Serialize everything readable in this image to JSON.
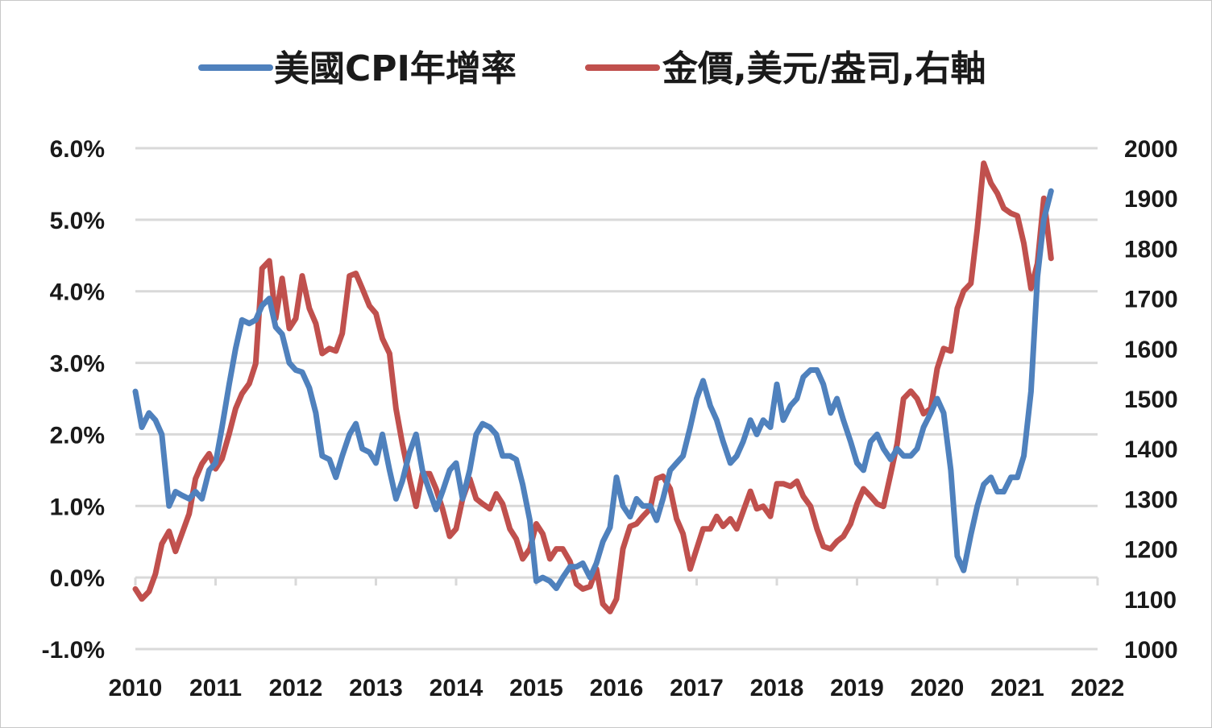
{
  "chart_data": {
    "type": "line",
    "title": "",
    "xlabel": "",
    "ylabel": "",
    "x_ticks": [
      "2010",
      "2011",
      "2012",
      "2013",
      "2014",
      "2015",
      "2016",
      "2017",
      "2018",
      "2019",
      "2020",
      "2021",
      "2022"
    ],
    "xlim": [
      2010,
      2022
    ],
    "y_left": {
      "ticks": [
        "6.0%",
        "5.0%",
        "4.0%",
        "3.0%",
        "2.0%",
        "1.0%",
        "0.0%",
        "-1.0%"
      ],
      "lim": [
        -1.0,
        6.0
      ]
    },
    "y_right": {
      "ticks": [
        "2000",
        "1900",
        "1800",
        "1700",
        "1600",
        "1500",
        "1400",
        "1300",
        "1200",
        "1100",
        "1000"
      ],
      "lim": [
        1000,
        2000
      ]
    },
    "grid": true,
    "legend_position": "top",
    "series": [
      {
        "name": "美國CPI年增率",
        "axis": "left",
        "color": "#4f81bd",
        "points": [
          [
            2010.0,
            2.6
          ],
          [
            2010.08,
            2.1
          ],
          [
            2010.17,
            2.3
          ],
          [
            2010.25,
            2.2
          ],
          [
            2010.33,
            2.0
          ],
          [
            2010.42,
            1.0
          ],
          [
            2010.5,
            1.2
          ],
          [
            2010.58,
            1.15
          ],
          [
            2010.67,
            1.1
          ],
          [
            2010.75,
            1.2
          ],
          [
            2010.83,
            1.1
          ],
          [
            2010.92,
            1.5
          ],
          [
            2011.0,
            1.6
          ],
          [
            2011.08,
            2.1
          ],
          [
            2011.17,
            2.7
          ],
          [
            2011.25,
            3.2
          ],
          [
            2011.33,
            3.6
          ],
          [
            2011.42,
            3.55
          ],
          [
            2011.5,
            3.6
          ],
          [
            2011.58,
            3.8
          ],
          [
            2011.67,
            3.9
          ],
          [
            2011.75,
            3.5
          ],
          [
            2011.83,
            3.4
          ],
          [
            2011.92,
            3.0
          ],
          [
            2012.0,
            2.9
          ],
          [
            2012.08,
            2.87
          ],
          [
            2012.17,
            2.65
          ],
          [
            2012.25,
            2.3
          ],
          [
            2012.33,
            1.7
          ],
          [
            2012.42,
            1.65
          ],
          [
            2012.5,
            1.4
          ],
          [
            2012.58,
            1.7
          ],
          [
            2012.67,
            2.0
          ],
          [
            2012.75,
            2.15
          ],
          [
            2012.83,
            1.8
          ],
          [
            2012.92,
            1.75
          ],
          [
            2013.0,
            1.6
          ],
          [
            2013.08,
            2.0
          ],
          [
            2013.17,
            1.5
          ],
          [
            2013.25,
            1.1
          ],
          [
            2013.33,
            1.35
          ],
          [
            2013.42,
            1.75
          ],
          [
            2013.5,
            2.0
          ],
          [
            2013.58,
            1.5
          ],
          [
            2013.67,
            1.2
          ],
          [
            2013.75,
            0.95
          ],
          [
            2013.83,
            1.2
          ],
          [
            2013.92,
            1.5
          ],
          [
            2014.0,
            1.6
          ],
          [
            2014.08,
            1.1
          ],
          [
            2014.17,
            1.5
          ],
          [
            2014.25,
            2.0
          ],
          [
            2014.33,
            2.15
          ],
          [
            2014.42,
            2.1
          ],
          [
            2014.5,
            2.0
          ],
          [
            2014.58,
            1.7
          ],
          [
            2014.67,
            1.7
          ],
          [
            2014.75,
            1.65
          ],
          [
            2014.83,
            1.3
          ],
          [
            2014.92,
            0.8
          ],
          [
            2015.0,
            -0.05
          ],
          [
            2015.08,
            0.0
          ],
          [
            2015.17,
            -0.05
          ],
          [
            2015.25,
            -0.15
          ],
          [
            2015.33,
            0.0
          ],
          [
            2015.42,
            0.15
          ],
          [
            2015.5,
            0.15
          ],
          [
            2015.58,
            0.2
          ],
          [
            2015.67,
            0.0
          ],
          [
            2015.75,
            0.2
          ],
          [
            2015.83,
            0.5
          ],
          [
            2015.92,
            0.7
          ],
          [
            2016.0,
            1.4
          ],
          [
            2016.08,
            1.0
          ],
          [
            2016.17,
            0.85
          ],
          [
            2016.25,
            1.1
          ],
          [
            2016.33,
            1.0
          ],
          [
            2016.42,
            1.0
          ],
          [
            2016.5,
            0.8
          ],
          [
            2016.58,
            1.1
          ],
          [
            2016.67,
            1.5
          ],
          [
            2016.75,
            1.6
          ],
          [
            2016.83,
            1.7
          ],
          [
            2016.92,
            2.1
          ],
          [
            2017.0,
            2.5
          ],
          [
            2017.08,
            2.75
          ],
          [
            2017.17,
            2.4
          ],
          [
            2017.25,
            2.2
          ],
          [
            2017.33,
            1.9
          ],
          [
            2017.42,
            1.6
          ],
          [
            2017.5,
            1.7
          ],
          [
            2017.58,
            1.9
          ],
          [
            2017.67,
            2.2
          ],
          [
            2017.75,
            2.0
          ],
          [
            2017.83,
            2.2
          ],
          [
            2017.92,
            2.1
          ],
          [
            2018.0,
            2.7
          ],
          [
            2018.08,
            2.2
          ],
          [
            2018.17,
            2.4
          ],
          [
            2018.25,
            2.5
          ],
          [
            2018.33,
            2.8
          ],
          [
            2018.42,
            2.9
          ],
          [
            2018.5,
            2.9
          ],
          [
            2018.58,
            2.7
          ],
          [
            2018.67,
            2.3
          ],
          [
            2018.75,
            2.5
          ],
          [
            2018.83,
            2.2
          ],
          [
            2018.92,
            1.9
          ],
          [
            2019.0,
            1.6
          ],
          [
            2019.08,
            1.5
          ],
          [
            2019.17,
            1.9
          ],
          [
            2019.25,
            2.0
          ],
          [
            2019.33,
            1.8
          ],
          [
            2019.42,
            1.65
          ],
          [
            2019.5,
            1.8
          ],
          [
            2019.58,
            1.7
          ],
          [
            2019.67,
            1.7
          ],
          [
            2019.75,
            1.8
          ],
          [
            2019.83,
            2.1
          ],
          [
            2019.92,
            2.3
          ],
          [
            2020.0,
            2.5
          ],
          [
            2020.08,
            2.3
          ],
          [
            2020.17,
            1.5
          ],
          [
            2020.25,
            0.3
          ],
          [
            2020.33,
            0.1
          ],
          [
            2020.42,
            0.6
          ],
          [
            2020.5,
            1.0
          ],
          [
            2020.58,
            1.3
          ],
          [
            2020.67,
            1.4
          ],
          [
            2020.75,
            1.2
          ],
          [
            2020.83,
            1.2
          ],
          [
            2020.92,
            1.4
          ],
          [
            2021.0,
            1.4
          ],
          [
            2021.08,
            1.7
          ],
          [
            2021.17,
            2.6
          ],
          [
            2021.25,
            4.2
          ],
          [
            2021.33,
            5.0
          ],
          [
            2021.42,
            5.4
          ]
        ]
      },
      {
        "name": "金價,美元/盎司,右軸",
        "axis": "right",
        "color": "#c0504d",
        "points": [
          [
            2010.0,
            1120
          ],
          [
            2010.08,
            1100
          ],
          [
            2010.17,
            1115
          ],
          [
            2010.25,
            1150
          ],
          [
            2010.33,
            1210
          ],
          [
            2010.42,
            1235
          ],
          [
            2010.5,
            1195
          ],
          [
            2010.58,
            1230
          ],
          [
            2010.67,
            1270
          ],
          [
            2010.75,
            1340
          ],
          [
            2010.83,
            1370
          ],
          [
            2010.92,
            1390
          ],
          [
            2011.0,
            1360
          ],
          [
            2011.08,
            1380
          ],
          [
            2011.17,
            1430
          ],
          [
            2011.25,
            1480
          ],
          [
            2011.33,
            1510
          ],
          [
            2011.42,
            1530
          ],
          [
            2011.5,
            1570
          ],
          [
            2011.58,
            1760
          ],
          [
            2011.67,
            1775
          ],
          [
            2011.75,
            1660
          ],
          [
            2011.83,
            1740
          ],
          [
            2011.92,
            1640
          ],
          [
            2012.0,
            1660
          ],
          [
            2012.08,
            1745
          ],
          [
            2012.17,
            1680
          ],
          [
            2012.25,
            1650
          ],
          [
            2012.33,
            1590
          ],
          [
            2012.42,
            1600
          ],
          [
            2012.5,
            1595
          ],
          [
            2012.58,
            1630
          ],
          [
            2012.67,
            1745
          ],
          [
            2012.75,
            1750
          ],
          [
            2012.83,
            1720
          ],
          [
            2012.92,
            1685
          ],
          [
            2013.0,
            1670
          ],
          [
            2013.08,
            1620
          ],
          [
            2013.17,
            1590
          ],
          [
            2013.25,
            1480
          ],
          [
            2013.33,
            1410
          ],
          [
            2013.42,
            1340
          ],
          [
            2013.5,
            1285
          ],
          [
            2013.58,
            1350
          ],
          [
            2013.67,
            1350
          ],
          [
            2013.75,
            1320
          ],
          [
            2013.83,
            1280
          ],
          [
            2013.92,
            1225
          ],
          [
            2014.0,
            1240
          ],
          [
            2014.08,
            1300
          ],
          [
            2014.17,
            1340
          ],
          [
            2014.25,
            1300
          ],
          [
            2014.33,
            1290
          ],
          [
            2014.42,
            1280
          ],
          [
            2014.5,
            1310
          ],
          [
            2014.58,
            1290
          ],
          [
            2014.67,
            1240
          ],
          [
            2014.75,
            1220
          ],
          [
            2014.83,
            1180
          ],
          [
            2014.92,
            1200
          ],
          [
            2015.0,
            1250
          ],
          [
            2015.08,
            1230
          ],
          [
            2015.17,
            1180
          ],
          [
            2015.25,
            1200
          ],
          [
            2015.33,
            1200
          ],
          [
            2015.42,
            1175
          ],
          [
            2015.5,
            1130
          ],
          [
            2015.58,
            1120
          ],
          [
            2015.67,
            1125
          ],
          [
            2015.75,
            1160
          ],
          [
            2015.83,
            1090
          ],
          [
            2015.92,
            1075
          ],
          [
            2016.0,
            1100
          ],
          [
            2016.08,
            1200
          ],
          [
            2016.17,
            1245
          ],
          [
            2016.25,
            1250
          ],
          [
            2016.33,
            1265
          ],
          [
            2016.42,
            1280
          ],
          [
            2016.5,
            1340
          ],
          [
            2016.58,
            1345
          ],
          [
            2016.67,
            1320
          ],
          [
            2016.75,
            1260
          ],
          [
            2016.83,
            1230
          ],
          [
            2016.92,
            1160
          ],
          [
            2017.0,
            1200
          ],
          [
            2017.08,
            1240
          ],
          [
            2017.17,
            1240
          ],
          [
            2017.25,
            1265
          ],
          [
            2017.33,
            1245
          ],
          [
            2017.42,
            1260
          ],
          [
            2017.5,
            1240
          ],
          [
            2017.58,
            1275
          ],
          [
            2017.67,
            1315
          ],
          [
            2017.75,
            1280
          ],
          [
            2017.83,
            1285
          ],
          [
            2017.92,
            1265
          ],
          [
            2018.0,
            1330
          ],
          [
            2018.08,
            1330
          ],
          [
            2018.17,
            1325
          ],
          [
            2018.25,
            1335
          ],
          [
            2018.33,
            1305
          ],
          [
            2018.42,
            1285
          ],
          [
            2018.5,
            1240
          ],
          [
            2018.58,
            1205
          ],
          [
            2018.67,
            1200
          ],
          [
            2018.75,
            1215
          ],
          [
            2018.83,
            1225
          ],
          [
            2018.92,
            1250
          ],
          [
            2019.0,
            1290
          ],
          [
            2019.08,
            1320
          ],
          [
            2019.17,
            1305
          ],
          [
            2019.25,
            1290
          ],
          [
            2019.33,
            1285
          ],
          [
            2019.42,
            1350
          ],
          [
            2019.5,
            1410
          ],
          [
            2019.58,
            1500
          ],
          [
            2019.67,
            1515
          ],
          [
            2019.75,
            1500
          ],
          [
            2019.83,
            1470
          ],
          [
            2019.92,
            1480
          ],
          [
            2020.0,
            1560
          ],
          [
            2020.08,
            1600
          ],
          [
            2020.17,
            1595
          ],
          [
            2020.25,
            1680
          ],
          [
            2020.33,
            1715
          ],
          [
            2020.42,
            1730
          ],
          [
            2020.5,
            1840
          ],
          [
            2020.58,
            1970
          ],
          [
            2020.67,
            1930
          ],
          [
            2020.75,
            1910
          ],
          [
            2020.83,
            1880
          ],
          [
            2020.92,
            1870
          ],
          [
            2021.0,
            1865
          ],
          [
            2021.08,
            1810
          ],
          [
            2021.17,
            1720
          ],
          [
            2021.25,
            1770
          ],
          [
            2021.33,
            1900
          ],
          [
            2021.42,
            1780
          ]
        ]
      }
    ]
  }
}
